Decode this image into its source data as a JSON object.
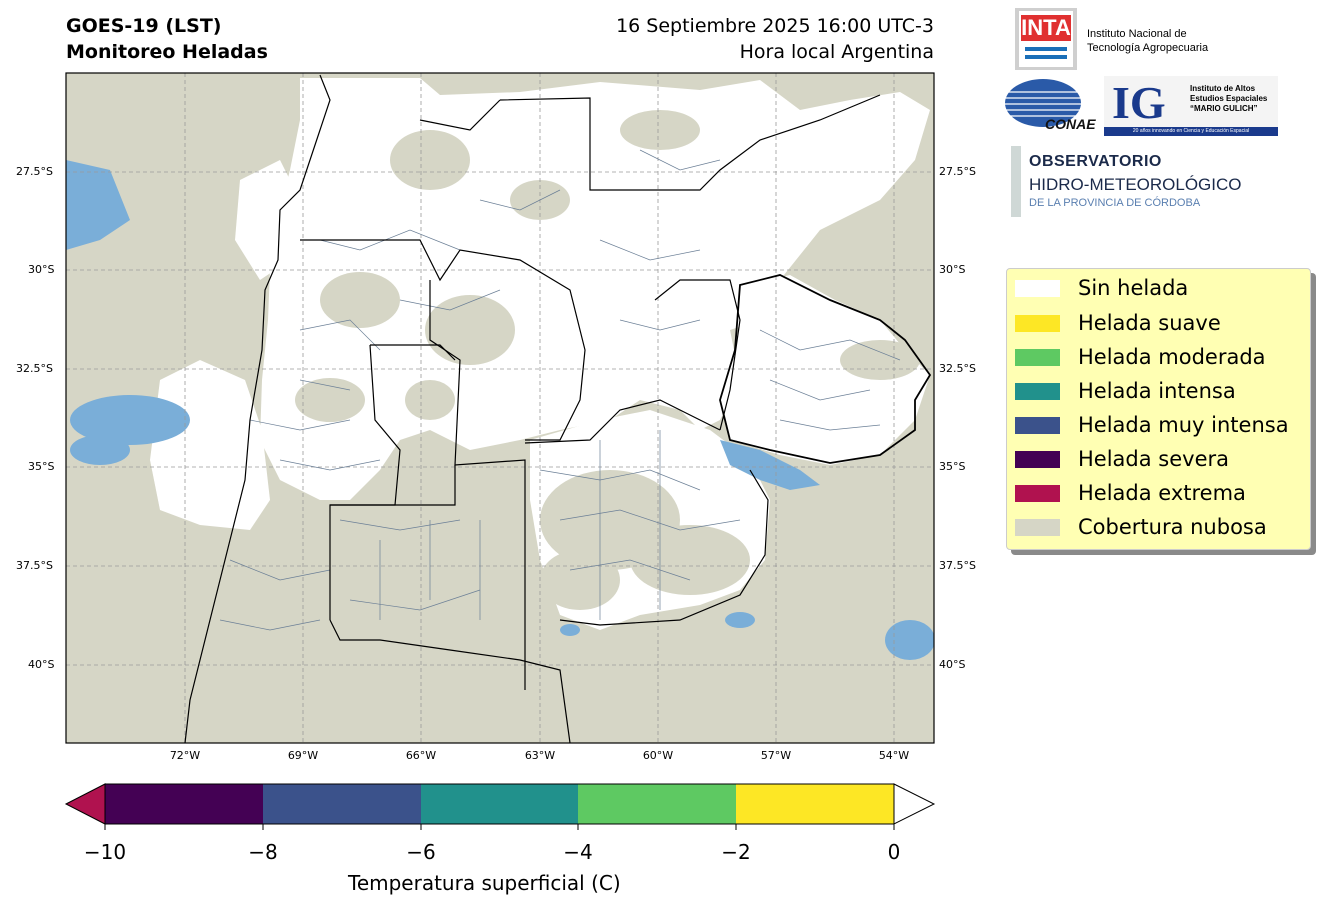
{
  "header": {
    "title_line1": "GOES-19 (LST)",
    "title_line2": "Monitoreo Heladas",
    "date_line1": "16 Septiembre 2025 16:00 UTC-3",
    "date_line2": "Hora local Argentina"
  },
  "map": {
    "lat_labels": [
      "27.5°S",
      "30°S",
      "32.5°S",
      "35°S",
      "37.5°S",
      "40°S"
    ],
    "lon_labels": [
      "72°W",
      "69°W",
      "66°W",
      "63°W",
      "60°W",
      "57°W",
      "54°W"
    ],
    "gridlines": true,
    "background_color": "#d6d6c6",
    "no_frost_color": "#ffffff",
    "border_color": "#000000",
    "district_color": "#6b7f96"
  },
  "legend": {
    "items": [
      {
        "label": "Sin helada",
        "color": "#ffffff"
      },
      {
        "label": "Helada suave",
        "color": "#fde725"
      },
      {
        "label": "Helada moderada",
        "color": "#5ec962"
      },
      {
        "label": "Helada intensa",
        "color": "#21918c"
      },
      {
        "label": "Helada muy intensa",
        "color": "#3b528b"
      },
      {
        "label": "Helada severa",
        "color": "#440154"
      },
      {
        "label": "Helada extrema",
        "color": "#b0124f"
      },
      {
        "label": "Cobertura nubosa",
        "color": "#d6d6c6"
      }
    ]
  },
  "colorbar": {
    "ticks": [
      "−10",
      "−8",
      "−6",
      "−4",
      "−2",
      "0"
    ],
    "label": "Temperatura superficial (C)",
    "colors": [
      "#440154",
      "#3b528b",
      "#21918c",
      "#5ec962",
      "#fde725"
    ],
    "under_color": "#b0124f",
    "over_color": "#ffffff"
  },
  "logos": {
    "inta_word": "INTA",
    "inta_line1": "Instituto Nacional de",
    "inta_line2": "Tecnología Agropecuaria",
    "conae_word": "CONAE",
    "ig_letters": "IG",
    "ig_line1": "Instituto de Altos",
    "ig_line2": "Estudios Espaciales",
    "ig_line3": "“MARIO GULICH”",
    "ig_bar": "20 años innovando en Ciencia y Educación Espacial",
    "obs_line1": "OBSERVATORIO",
    "obs_line2": "HIDRO-METEOROLÓGICO",
    "obs_line3": "DE LA PROVINCIA DE CÓRDOBA"
  }
}
